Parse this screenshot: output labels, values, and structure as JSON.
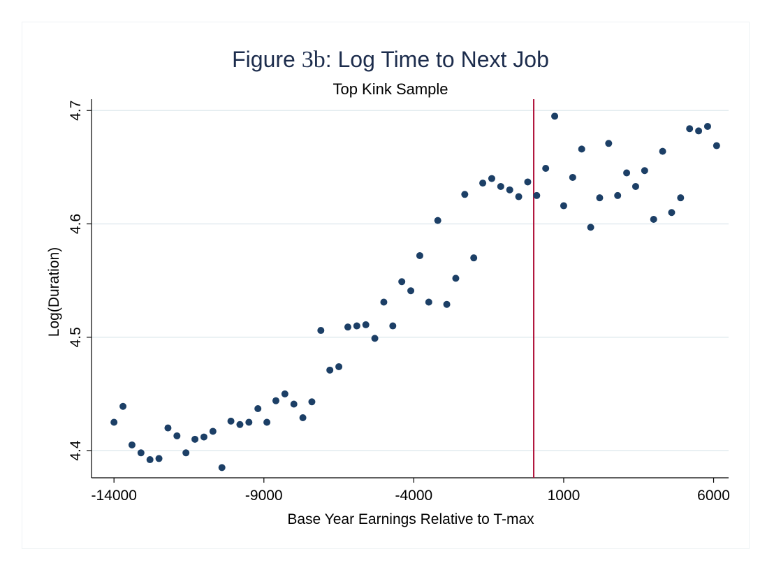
{
  "chart_data": {
    "type": "scatter",
    "title_prefix": "Figure ",
    "title_figure_number": "3b",
    "title_suffix": ": Log Time to Next Job",
    "subtitle": "Top Kink Sample",
    "xlabel": "Base Year Earnings Relative to T-max",
    "ylabel": "Log(Duration)",
    "xlim": [
      -14750,
      6500
    ],
    "ylim": [
      4.376,
      4.71
    ],
    "xticks": [
      -14000,
      -9000,
      -4000,
      1000,
      6000
    ],
    "xtick_labels": [
      "-14000",
      "-9000",
      "-4000",
      "1000",
      "6000"
    ],
    "yticks": [
      4.4,
      4.5,
      4.6,
      4.7
    ],
    "ytick_labels": [
      "4.4",
      "4.5",
      "4.6",
      "4.7"
    ],
    "grid": true,
    "kink_line_x": 0,
    "colors": {
      "marker": "#1c3f66",
      "kink_line": "#b0123a",
      "grid": "#e2ebef",
      "axis": "#000000"
    },
    "points": [
      {
        "x": -14000,
        "y": 4.425
      },
      {
        "x": -13700,
        "y": 4.439
      },
      {
        "x": -13400,
        "y": 4.405
      },
      {
        "x": -13100,
        "y": 4.398
      },
      {
        "x": -12800,
        "y": 4.392
      },
      {
        "x": -12500,
        "y": 4.393
      },
      {
        "x": -12200,
        "y": 4.42
      },
      {
        "x": -11900,
        "y": 4.413
      },
      {
        "x": -11600,
        "y": 4.398
      },
      {
        "x": -11300,
        "y": 4.41
      },
      {
        "x": -11000,
        "y": 4.412
      },
      {
        "x": -10700,
        "y": 4.417
      },
      {
        "x": -10400,
        "y": 4.385
      },
      {
        "x": -10100,
        "y": 4.426
      },
      {
        "x": -9800,
        "y": 4.423
      },
      {
        "x": -9500,
        "y": 4.425
      },
      {
        "x": -9200,
        "y": 4.437
      },
      {
        "x": -8900,
        "y": 4.425
      },
      {
        "x": -8600,
        "y": 4.444
      },
      {
        "x": -8300,
        "y": 4.45
      },
      {
        "x": -8000,
        "y": 4.441
      },
      {
        "x": -7700,
        "y": 4.429
      },
      {
        "x": -7400,
        "y": 4.443
      },
      {
        "x": -7100,
        "y": 4.506
      },
      {
        "x": -6800,
        "y": 4.471
      },
      {
        "x": -6500,
        "y": 4.474
      },
      {
        "x": -6200,
        "y": 4.509
      },
      {
        "x": -5900,
        "y": 4.51
      },
      {
        "x": -5600,
        "y": 4.511
      },
      {
        "x": -5300,
        "y": 4.499
      },
      {
        "x": -5000,
        "y": 4.531
      },
      {
        "x": -4700,
        "y": 4.51
      },
      {
        "x": -4400,
        "y": 4.549
      },
      {
        "x": -4100,
        "y": 4.541
      },
      {
        "x": -3800,
        "y": 4.572
      },
      {
        "x": -3500,
        "y": 4.531
      },
      {
        "x": -3200,
        "y": 4.603
      },
      {
        "x": -2900,
        "y": 4.529
      },
      {
        "x": -2600,
        "y": 4.552
      },
      {
        "x": -2300,
        "y": 4.626
      },
      {
        "x": -2000,
        "y": 4.57
      },
      {
        "x": -1700,
        "y": 4.636
      },
      {
        "x": -1400,
        "y": 4.64
      },
      {
        "x": -1100,
        "y": 4.633
      },
      {
        "x": -800,
        "y": 4.63
      },
      {
        "x": -500,
        "y": 4.624
      },
      {
        "x": -200,
        "y": 4.637
      },
      {
        "x": 100,
        "y": 4.625
      },
      {
        "x": 400,
        "y": 4.649
      },
      {
        "x": 700,
        "y": 4.695
      },
      {
        "x": 1000,
        "y": 4.616
      },
      {
        "x": 1300,
        "y": 4.641
      },
      {
        "x": 1600,
        "y": 4.666
      },
      {
        "x": 1900,
        "y": 4.597
      },
      {
        "x": 2200,
        "y": 4.623
      },
      {
        "x": 2500,
        "y": 4.671
      },
      {
        "x": 2800,
        "y": 4.625
      },
      {
        "x": 3100,
        "y": 4.645
      },
      {
        "x": 3400,
        "y": 4.633
      },
      {
        "x": 3700,
        "y": 4.647
      },
      {
        "x": 4000,
        "y": 4.604
      },
      {
        "x": 4300,
        "y": 4.664
      },
      {
        "x": 4600,
        "y": 4.61
      },
      {
        "x": 4900,
        "y": 4.623
      },
      {
        "x": 5200,
        "y": 4.684
      },
      {
        "x": 5500,
        "y": 4.682
      },
      {
        "x": 5800,
        "y": 4.686
      },
      {
        "x": 6100,
        "y": 4.669
      }
    ]
  }
}
